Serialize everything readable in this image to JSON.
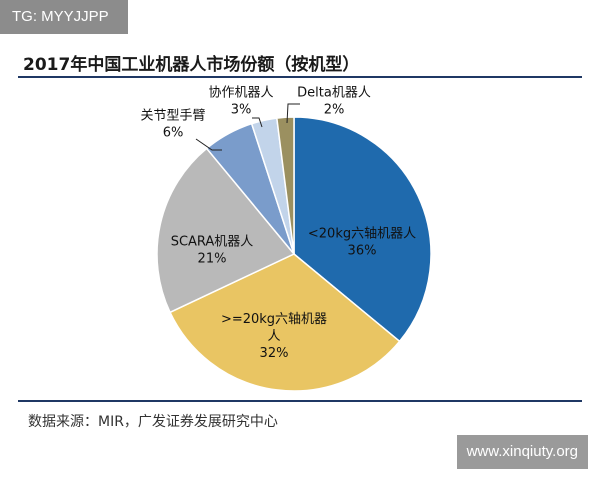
{
  "watermark_top": "TG: MYYJJPP",
  "watermark_bottom": "www.xinqiuty.org",
  "source": "数据来源：MIR，广发证券发展研究中心",
  "chart_data": {
    "type": "pie",
    "title": "2017年中国工业机器人市场份额（按机型）",
    "slices": [
      {
        "name": "<20kg六轴机器人",
        "label_lines": [
          "<20kg六轴机器人",
          "36%"
        ],
        "value": 36,
        "color": "#1f6aad"
      },
      {
        "name": ">=20kg六轴机器人",
        "label_lines": [
          ">=20kg六轴机器",
          "人",
          "32%"
        ],
        "value": 32,
        "color": "#e9c563"
      },
      {
        "name": "SCARA机器人",
        "label_lines": [
          "SCARA机器人",
          "21%"
        ],
        "value": 21,
        "color": "#b9b9b9"
      },
      {
        "name": "关节型手臂",
        "label_lines": [
          "关节型手臂",
          "6%"
        ],
        "value": 6,
        "color": "#7a9ccb"
      },
      {
        "name": "协作机器人",
        "label_lines": [
          "协作机器人",
          "3%"
        ],
        "value": 3,
        "color": "#c2d4ea"
      },
      {
        "name": "Delta机器人",
        "label_lines": [
          "Delta机器人",
          "2%"
        ],
        "value": 2,
        "color": "#9b9060"
      }
    ]
  }
}
